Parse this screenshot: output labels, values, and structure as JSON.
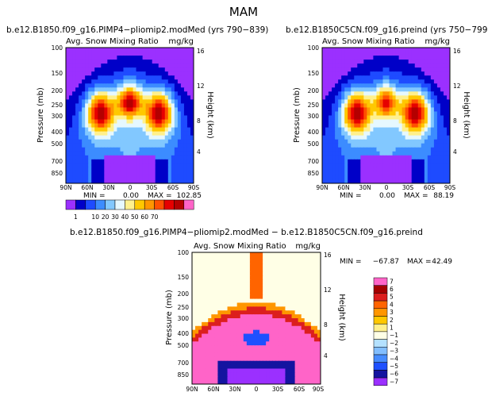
{
  "figure_title": "MAM",
  "chart_data": [
    {
      "type": "heatmap",
      "panel": "top-left",
      "case_title": "b.e12.B1850.f09_g16.PIMP4−pliomip2.modMed (yrs 790−839)",
      "variable": "Avg. Snow Mixing Ratio",
      "units": "mg/kg",
      "ylabel": "Pressure (mb)",
      "ylabel_right": "Height (km)",
      "x_ticks": [
        "90N",
        "60N",
        "30N",
        "0",
        "30S",
        "60S",
        "90S"
      ],
      "y_ticks": [
        "100",
        "150",
        "200",
        "250",
        "300",
        "400",
        "500",
        "700",
        "850"
      ],
      "height_ticks": [
        "16",
        "12",
        "8",
        "4"
      ],
      "min_label": "MIN =",
      "min_value": "0.00",
      "max_label": "MAX =",
      "max_value": "102.85",
      "palette": "abs",
      "shape": [
        {
          "c": 0.5,
          "t": 0.3,
          "w": 0.62,
          "top": 0.08,
          "peak": 1.0,
          "pw": 0.26,
          "fpk": 0.78
        }
      ]
    },
    {
      "type": "heatmap",
      "panel": "top-right",
      "case_title": "b.e12.B1850C5CN.f09_g16.preind (yrs 750−799)",
      "variable": "Avg. Snow Mixing Ratio",
      "units": "mg/kg",
      "ylabel": "Pressure (mb)",
      "ylabel_right": "Height (km)",
      "x_ticks": [
        "90N",
        "60N",
        "30N",
        "0",
        "30S",
        "60S",
        "90S"
      ],
      "y_ticks": [
        "100",
        "150",
        "200",
        "250",
        "300",
        "400",
        "500",
        "700",
        "850"
      ],
      "height_ticks": [
        "16",
        "12",
        "8",
        "4"
      ],
      "min_label": "MIN =",
      "min_value": "0.00",
      "max_label": "MAX =",
      "max_value": "88.19",
      "palette": "abs",
      "shape": [
        {
          "c": 0.5,
          "t": 0.2,
          "w": 0.62,
          "top": 0.08,
          "peak": 1.0,
          "pw": 0.26,
          "fpk": 0.78
        }
      ]
    },
    {
      "type": "heatmap",
      "panel": "bottom",
      "case_title": "b.e12.B1850.f09_g16.PIMP4−pliomip2.modMed − b.e12.B1850C5CN.f09_g16.preind",
      "variable": "Avg. Snow Mixing Ratio",
      "units": "mg/kg",
      "ylabel": "Pressure (mb)",
      "ylabel_right": "Height (km)",
      "x_ticks": [
        "90N",
        "60N",
        "30N",
        "0",
        "30S",
        "60S",
        "90S"
      ],
      "y_ticks": [
        "100",
        "150",
        "200",
        "250",
        "300",
        "400",
        "500",
        "700",
        "850"
      ],
      "height_ticks": [
        "16",
        "12",
        "8",
        "4"
      ],
      "min_label": "MIN =",
      "min_value": "−67.87",
      "max_label": "MAX =",
      "max_value": "42.49",
      "palette": "diff"
    }
  ],
  "colorbars": {
    "abs": {
      "colors": [
        "#9b30ff",
        "#0000c8",
        "#1e4bff",
        "#3c8cff",
        "#82c8ff",
        "#e6f8ff",
        "#fff08c",
        "#ffc800",
        "#ff9600",
        "#ff5000",
        "#e60000",
        "#b40000",
        "#ff64c8"
      ],
      "labels": [
        "1",
        "10",
        "20",
        "30",
        "40",
        "50",
        "60",
        "70"
      ],
      "label_edges": [
        1,
        3,
        4,
        5,
        6,
        7,
        8,
        9,
        10,
        11,
        12,
        13
      ]
    },
    "diff": {
      "colors": [
        "#9b30ff",
        "#1414a0",
        "#1e50ff",
        "#468cff",
        "#82beff",
        "#b4e1ff",
        "#ffffe6",
        "#fff08c",
        "#ffc800",
        "#ff9600",
        "#ff6400",
        "#dc1e1e",
        "#a50000",
        "#ff64c8"
      ],
      "labels": [
        "−7",
        "−6",
        "−5",
        "−4",
        "−3",
        "−2",
        "−1",
        "1",
        "2",
        "3",
        "4",
        "5",
        "6",
        "7"
      ],
      "label_edges": [
        1,
        2,
        3,
        4,
        5,
        6,
        8,
        9,
        10,
        11,
        12,
        13,
        14
      ]
    }
  }
}
